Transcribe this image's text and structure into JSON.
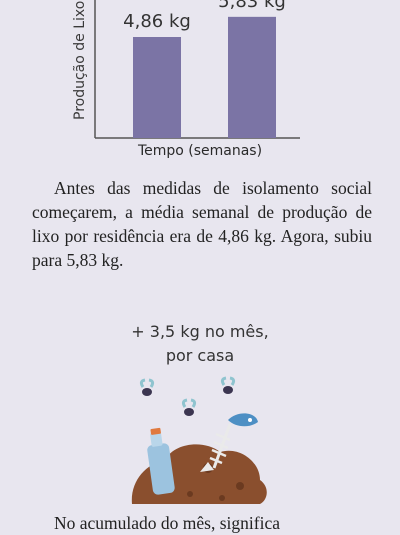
{
  "chart_data": {
    "type": "bar",
    "ylabel": "Produção de Lixo",
    "xlabel": "Tempo (semanas)",
    "categories": [
      "",
      ""
    ],
    "values": [
      4.86,
      5.83
    ],
    "data_labels": [
      "4,86 kg",
      "5,83 kg"
    ],
    "bar_color": "#7b74a5"
  },
  "paragraph1": "Antes das medidas de isolamento social começarem, a média semanal de produção de lixo por residência era de 4,86 kg. Agora, subiu para 5,83 kg.",
  "callout": {
    "line1": "+ 3,5 kg no mês,",
    "line2": "por casa"
  },
  "paragraph2": "No acumulado do mês, significa"
}
